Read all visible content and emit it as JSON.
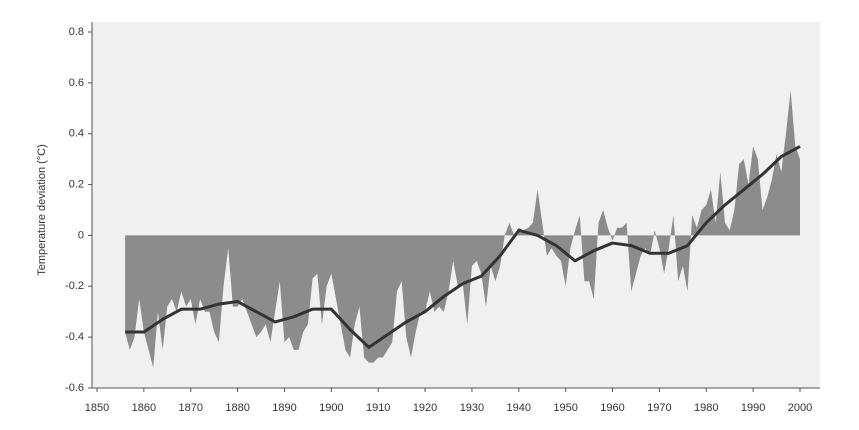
{
  "chart_data": {
    "type": "area-line",
    "y_label": "Temperature deviation (°C)",
    "xlim": [
      1850,
      2000
    ],
    "xticks": [
      1850,
      1860,
      1870,
      1880,
      1890,
      1900,
      1910,
      1920,
      1930,
      1940,
      1950,
      1960,
      1970,
      1980,
      1990,
      2000
    ],
    "ylim": [
      -0.6,
      0.8
    ],
    "yticks": [
      -0.6,
      -0.4,
      -0.2,
      0,
      0.2,
      0.4,
      0.6,
      0.8
    ],
    "x": [
      1856,
      1857,
      1858,
      1859,
      1860,
      1861,
      1862,
      1863,
      1864,
      1865,
      1866,
      1867,
      1868,
      1869,
      1870,
      1871,
      1872,
      1873,
      1874,
      1875,
      1876,
      1877,
      1878,
      1879,
      1880,
      1881,
      1882,
      1883,
      1884,
      1885,
      1886,
      1887,
      1888,
      1889,
      1890,
      1891,
      1892,
      1893,
      1894,
      1895,
      1896,
      1897,
      1898,
      1899,
      1900,
      1901,
      1902,
      1903,
      1904,
      1905,
      1906,
      1907,
      1908,
      1909,
      1910,
      1911,
      1912,
      1913,
      1914,
      1915,
      1916,
      1917,
      1918,
      1919,
      1920,
      1921,
      1922,
      1923,
      1924,
      1925,
      1926,
      1927,
      1928,
      1929,
      1930,
      1931,
      1932,
      1933,
      1934,
      1935,
      1936,
      1937,
      1938,
      1939,
      1940,
      1941,
      1942,
      1943,
      1944,
      1945,
      1946,
      1947,
      1948,
      1949,
      1950,
      1951,
      1952,
      1953,
      1954,
      1955,
      1956,
      1957,
      1958,
      1959,
      1960,
      1961,
      1962,
      1963,
      1964,
      1965,
      1966,
      1967,
      1968,
      1969,
      1970,
      1971,
      1972,
      1973,
      1974,
      1975,
      1976,
      1977,
      1978,
      1979,
      1980,
      1981,
      1982,
      1983,
      1984,
      1985,
      1986,
      1987,
      1988,
      1989,
      1990,
      1991,
      1992,
      1993,
      1994,
      1995,
      1996,
      1997,
      1998,
      1999,
      2000
    ],
    "series": [
      {
        "style": "area",
        "color": "#8c8c8c",
        "values": [
          -0.38,
          -0.45,
          -0.4,
          -0.25,
          -0.38,
          -0.45,
          -0.52,
          -0.3,
          -0.45,
          -0.28,
          -0.25,
          -0.3,
          -0.22,
          -0.28,
          -0.25,
          -0.35,
          -0.25,
          -0.3,
          -0.3,
          -0.38,
          -0.42,
          -0.2,
          -0.05,
          -0.28,
          -0.28,
          -0.25,
          -0.3,
          -0.35,
          -0.4,
          -0.38,
          -0.35,
          -0.42,
          -0.3,
          -0.18,
          -0.42,
          -0.4,
          -0.45,
          -0.45,
          -0.38,
          -0.35,
          -0.17,
          -0.15,
          -0.35,
          -0.2,
          -0.15,
          -0.25,
          -0.35,
          -0.45,
          -0.48,
          -0.35,
          -0.28,
          -0.48,
          -0.5,
          -0.5,
          -0.48,
          -0.48,
          -0.45,
          -0.42,
          -0.22,
          -0.18,
          -0.4,
          -0.48,
          -0.38,
          -0.3,
          -0.3,
          -0.22,
          -0.3,
          -0.28,
          -0.3,
          -0.22,
          -0.1,
          -0.2,
          -0.18,
          -0.35,
          -0.12,
          -0.1,
          -0.15,
          -0.28,
          -0.12,
          -0.18,
          -0.12,
          0.0,
          0.05,
          0.0,
          0.03,
          0.02,
          0.03,
          0.05,
          0.18,
          0.05,
          -0.08,
          -0.05,
          -0.08,
          -0.1,
          -0.2,
          -0.05,
          0.02,
          0.08,
          -0.18,
          -0.18,
          -0.25,
          0.05,
          0.1,
          0.03,
          -0.02,
          0.03,
          0.03,
          0.05,
          -0.22,
          -0.15,
          -0.08,
          -0.05,
          -0.08,
          0.02,
          -0.05,
          -0.15,
          -0.05,
          0.08,
          -0.18,
          -0.12,
          -0.22,
          0.08,
          0.03,
          0.1,
          0.12,
          0.18,
          0.05,
          0.25,
          0.05,
          0.02,
          0.1,
          0.28,
          0.3,
          0.2,
          0.35,
          0.3,
          0.1,
          0.15,
          0.22,
          0.32,
          0.25,
          0.4,
          0.57,
          0.35,
          0.3
        ]
      },
      {
        "style": "line",
        "color": "#333333",
        "x": [
          1856,
          1860,
          1864,
          1868,
          1872,
          1876,
          1880,
          1884,
          1888,
          1892,
          1896,
          1900,
          1904,
          1908,
          1912,
          1916,
          1920,
          1924,
          1928,
          1932,
          1936,
          1940,
          1944,
          1948,
          1952,
          1956,
          1960,
          1964,
          1968,
          1972,
          1976,
          1980,
          1984,
          1988,
          1992,
          1996,
          2000
        ],
        "values": [
          -0.38,
          -0.38,
          -0.33,
          -0.29,
          -0.29,
          -0.27,
          -0.26,
          -0.3,
          -0.34,
          -0.32,
          -0.29,
          -0.29,
          -0.37,
          -0.44,
          -0.39,
          -0.34,
          -0.3,
          -0.24,
          -0.19,
          -0.16,
          -0.08,
          0.02,
          0.0,
          -0.04,
          -0.1,
          -0.06,
          -0.03,
          -0.04,
          -0.07,
          -0.07,
          -0.04,
          0.05,
          0.12,
          0.18,
          0.24,
          0.31,
          0.35
        ]
      }
    ]
  }
}
